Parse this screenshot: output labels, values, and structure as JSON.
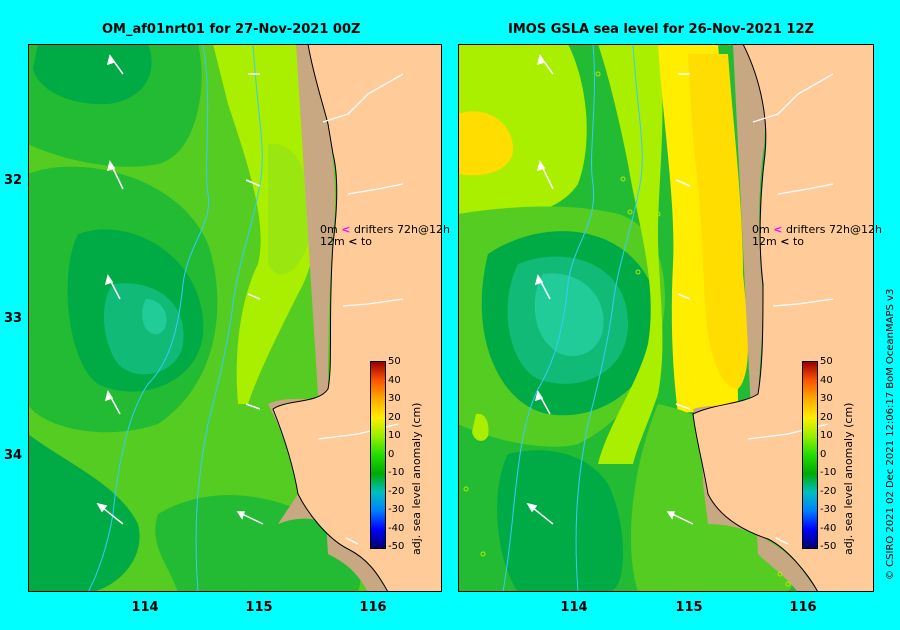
{
  "panels": [
    {
      "title": "OM_af01nrt01 for 27-Nov-2021 00Z",
      "legend": {
        "line1_depth": "0m",
        "line1_marker": "<",
        "line1_text": "drifters 72h@12h",
        "line2_depth": "12m",
        "line2_marker": "<",
        "line2_text": "to"
      },
      "y_ticks": [
        "32",
        "33",
        "34"
      ],
      "x_ticks": [
        "114",
        "115",
        "116"
      ]
    },
    {
      "title": "IMOS GSLA sea level  for 26-Nov-2021 12Z",
      "legend": {
        "line1_depth": "0m",
        "line1_marker": "<",
        "line1_text": "drifters 72h@12h",
        "line2_depth": "12m",
        "line2_marker": "<",
        "line2_text": "to"
      },
      "x_ticks": [
        "114",
        "115",
        "116"
      ]
    }
  ],
  "colorbar": {
    "label": "adj. sea level anomaly (cm)",
    "ticks": [
      "50",
      "40",
      "30",
      "20",
      "10",
      "0",
      "-10",
      "-20",
      "-30",
      "-40",
      "-50"
    ],
    "colors": {
      "low": "#00006e",
      "mid_low": "#00aa00",
      "zero": "#22dd00",
      "mid_high": "#ffee00",
      "high": "#990000"
    }
  },
  "credit": "© CSIRO 2021   02 Dec 2021 12:06:17 BoM OceanMAPS v3",
  "colors": {
    "land": "#ffcc99",
    "shelf": "#c8a882",
    "background": "#00ffff"
  }
}
